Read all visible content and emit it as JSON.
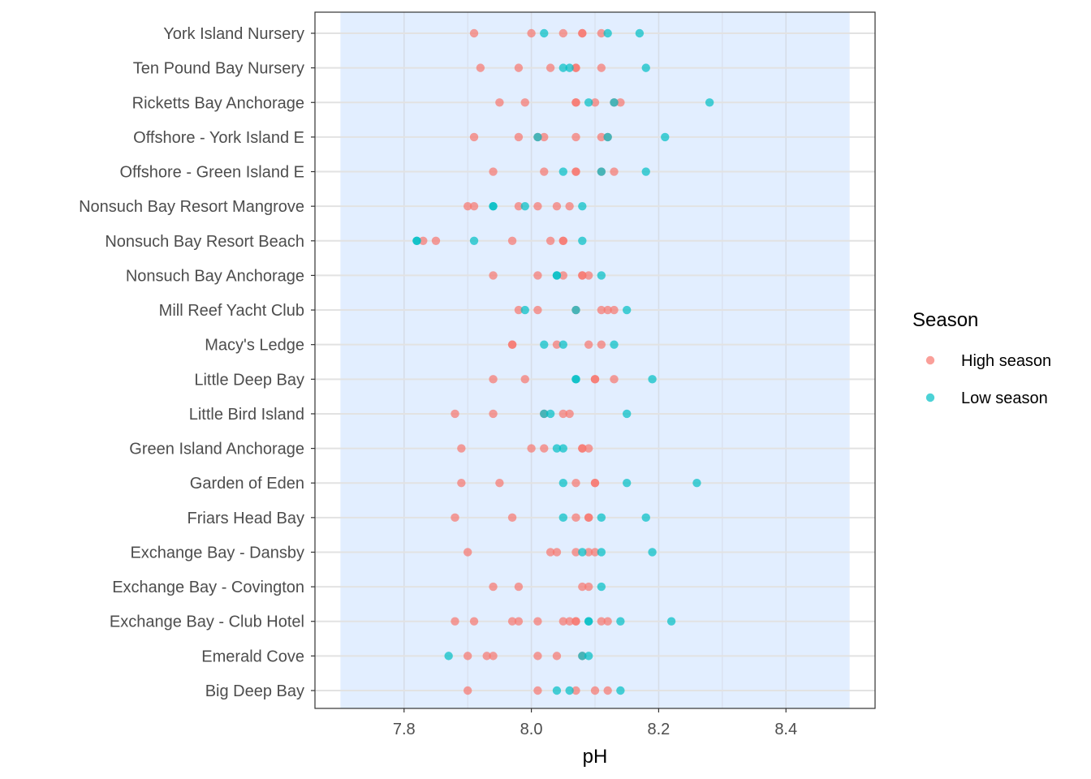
{
  "chart_data": {
    "type": "scatter",
    "title": "",
    "xlabel": "pH",
    "ylabel": "",
    "xlim": [
      7.66,
      8.54
    ],
    "x_ticks": [
      7.8,
      8.0,
      8.2,
      8.4
    ],
    "x_tick_labels": [
      "7.8",
      "8.0",
      "8.2",
      "8.4"
    ],
    "shaded_band": {
      "x_range": [
        7.7,
        8.5
      ],
      "color": "#cfe2ff"
    },
    "grid": true,
    "legend_position": "right",
    "legend_title": "Season",
    "categories": [
      "York Island Nursery",
      "Ten Pound Bay Nursery",
      "Ricketts Bay Anchorage",
      "Offshore - York Island E",
      "Offshore - Green Island E",
      "Nonsuch Bay Resort Mangrove",
      "Nonsuch Bay Resort Beach",
      "Nonsuch Bay Anchorage",
      "Mill Reef Yacht Club",
      "Macy's Ledge",
      "Little Deep Bay",
      "Little Bird Island",
      "Green Island Anchorage",
      "Garden of Eden",
      "Friars Head Bay",
      "Exchange Bay - Dansby",
      "Exchange Bay - Covington",
      "Exchange Bay - Club Hotel",
      "Emerald Cove",
      "Big Deep Bay"
    ],
    "series": [
      {
        "name": "High season",
        "color": "#F8766D",
        "points": {
          "York Island Nursery": [
            7.91,
            8.0,
            8.05,
            8.08,
            8.08,
            8.11
          ],
          "Ten Pound Bay Nursery": [
            7.92,
            7.98,
            8.03,
            8.07,
            8.07,
            8.11
          ],
          "Ricketts Bay Anchorage": [
            7.95,
            7.99,
            8.07,
            8.07,
            8.1,
            8.13,
            8.14
          ],
          "Offshore - York Island E": [
            7.91,
            7.98,
            8.01,
            8.02,
            8.07,
            8.11,
            8.12
          ],
          "Offshore - Green Island E": [
            7.94,
            8.02,
            8.07,
            8.07,
            8.11,
            8.13
          ],
          "Nonsuch Bay Resort Mangrove": [
            7.9,
            7.91,
            7.98,
            8.01,
            8.04,
            8.06
          ],
          "Nonsuch Bay Resort Beach": [
            7.83,
            7.85,
            7.97,
            8.03,
            8.05,
            8.05
          ],
          "Nonsuch Bay Anchorage": [
            7.94,
            8.01,
            8.05,
            8.08,
            8.08,
            8.09
          ],
          "Mill Reef Yacht Club": [
            7.98,
            8.01,
            8.07,
            8.11,
            8.12,
            8.13
          ],
          "Macy's Ledge": [
            7.97,
            7.97,
            8.04,
            8.09,
            8.11
          ],
          "Little Deep Bay": [
            7.94,
            7.99,
            8.1,
            8.1,
            8.13
          ],
          "Little Bird Island": [
            7.88,
            7.94,
            8.02,
            8.05,
            8.06
          ],
          "Green Island Anchorage": [
            7.89,
            8.0,
            8.02,
            8.08,
            8.08,
            8.09
          ],
          "Garden of Eden": [
            7.89,
            7.95,
            8.07,
            8.1,
            8.1
          ],
          "Friars Head Bay": [
            7.88,
            7.97,
            8.07,
            8.09,
            8.09
          ],
          "Exchange Bay - Dansby": [
            7.9,
            8.03,
            8.04,
            8.07,
            8.09,
            8.1
          ],
          "Exchange Bay - Covington": [
            7.94,
            7.98,
            8.08,
            8.09
          ],
          "Exchange Bay - Club Hotel": [
            7.88,
            7.91,
            7.97,
            7.98,
            8.01,
            8.05,
            8.06,
            8.07,
            8.07,
            8.11,
            8.12
          ],
          "Emerald Cove": [
            7.9,
            7.93,
            7.94,
            8.01,
            8.04,
            8.08
          ],
          "Big Deep Bay": [
            7.9,
            8.01,
            8.07,
            8.1,
            8.12
          ]
        }
      },
      {
        "name": "Low season",
        "color": "#00BFC4",
        "points": {
          "York Island Nursery": [
            8.02,
            8.12,
            8.17
          ],
          "Ten Pound Bay Nursery": [
            8.05,
            8.06,
            8.18
          ],
          "Ricketts Bay Anchorage": [
            8.09,
            8.13,
            8.28
          ],
          "Offshore - York Island E": [
            8.01,
            8.12,
            8.21
          ],
          "Offshore - Green Island E": [
            8.05,
            8.11,
            8.18
          ],
          "Nonsuch Bay Resort Mangrove": [
            7.94,
            7.94,
            7.99,
            8.08
          ],
          "Nonsuch Bay Resort Beach": [
            7.82,
            7.82,
            7.91,
            8.08
          ],
          "Nonsuch Bay Anchorage": [
            8.04,
            8.04,
            8.11
          ],
          "Mill Reef Yacht Club": [
            7.99,
            8.07,
            8.15
          ],
          "Macy's Ledge": [
            8.02,
            8.05,
            8.13
          ],
          "Little Deep Bay": [
            8.07,
            8.07,
            8.19
          ],
          "Little Bird Island": [
            8.02,
            8.03,
            8.15
          ],
          "Green Island Anchorage": [
            8.04,
            8.05
          ],
          "Garden of Eden": [
            8.05,
            8.15,
            8.26
          ],
          "Friars Head Bay": [
            8.05,
            8.11,
            8.18
          ],
          "Exchange Bay - Dansby": [
            8.08,
            8.11,
            8.19
          ],
          "Exchange Bay - Covington": [
            8.11
          ],
          "Exchange Bay - Club Hotel": [
            8.09,
            8.09,
            8.14,
            8.22
          ],
          "Emerald Cove": [
            7.87,
            8.08,
            8.09
          ],
          "Big Deep Bay": [
            8.04,
            8.06,
            8.14
          ]
        }
      }
    ]
  }
}
